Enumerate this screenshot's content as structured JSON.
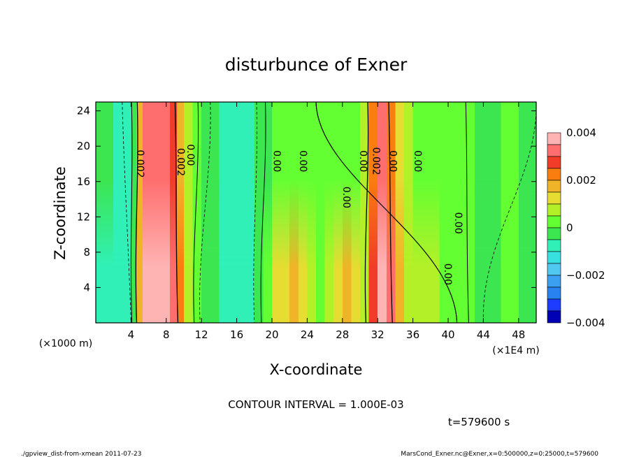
{
  "chart_data": {
    "type": "heatmap",
    "title": "disturbunce of Exner",
    "xlabel": "X-coordinate",
    "ylabel": "Z-coordinate",
    "x_unit_label": "(×1E4 m)",
    "y_unit_label": "(×1000 m)",
    "xlim": [
      0,
      50
    ],
    "ylim": [
      0,
      25
    ],
    "x_ticks": [
      4,
      8,
      12,
      16,
      20,
      24,
      28,
      32,
      36,
      40,
      44,
      48
    ],
    "y_ticks": [
      4,
      8,
      12,
      16,
      20,
      24
    ],
    "colorbar": {
      "min": -0.004,
      "max": 0.004,
      "tick_labels": [
        "0.004",
        "0.002",
        "0",
        "−0.002",
        "−0.004"
      ],
      "tick_values": [
        0.004,
        0.002,
        0,
        -0.002,
        -0.004
      ]
    },
    "contour_labels": [
      {
        "text": "0.002",
        "x": 5.0,
        "z": 18.0
      },
      {
        "text": "0.002",
        "x": 9.6,
        "z": 18.2
      },
      {
        "text": "0.00",
        "x": 10.7,
        "z": 19.0
      },
      {
        "text": "0.00",
        "x": 20.5,
        "z": 18.3
      },
      {
        "text": "0.00",
        "x": 23.5,
        "z": 18.3
      },
      {
        "text": "0.00",
        "x": 28.4,
        "z": 14.2
      },
      {
        "text": "0.00",
        "x": 30.3,
        "z": 18.3
      },
      {
        "text": "0.002",
        "x": 31.8,
        "z": 18.3
      },
      {
        "text": "0.00",
        "x": 33.7,
        "z": 18.3
      },
      {
        "text": "0.00",
        "x": 36.5,
        "z": 18.3
      },
      {
        "text": "0.00",
        "x": 41.1,
        "z": 11.3
      },
      {
        "text": "0.00",
        "x": 39.9,
        "z": 5.5
      }
    ],
    "column_profile": {
      "x": [
        0,
        2,
        4,
        4.6,
        5.3,
        6,
        6.8,
        7.6,
        8.4,
        9.2,
        10,
        11,
        12,
        14,
        16,
        18,
        19,
        20,
        21,
        22,
        23,
        24,
        25,
        26,
        27,
        28,
        29,
        30,
        31,
        32,
        33,
        34,
        35,
        36,
        37,
        38,
        39,
        40,
        41,
        42,
        43,
        44,
        46,
        48,
        50
      ],
      "value_top": [
        -0.0004,
        -0.0006,
        -0.0002,
        0.0018,
        0.0031,
        0.0033,
        0.0033,
        0.0031,
        0.0026,
        0.0018,
        0.0009,
        0.0003,
        -0.0002,
        -0.0006,
        -0.0008,
        -0.0005,
        -0.0001,
        0.0003,
        0.0004,
        0.0004,
        0.0003,
        0.0002,
        0.0,
        0.0001,
        0.0003,
        0.0004,
        0.0004,
        0.0006,
        0.0022,
        0.003,
        0.0023,
        0.0011,
        0.0006,
        0.0004,
        0.0004,
        0.0002,
        0.0001,
        0.0003,
        0.0002,
        0.0,
        -0.0002,
        -0.0003,
        0.0,
        -0.0002,
        -0.0004
      ],
      "value_bottom": [
        -0.0008,
        -0.001,
        -0.0004,
        0.0019,
        0.0035,
        0.0036,
        0.0036,
        0.0035,
        0.0032,
        0.0022,
        0.0009,
        0.0001,
        -0.0005,
        -0.0008,
        -0.0009,
        -0.0004,
        0.0001,
        0.0011,
        0.0014,
        0.0016,
        0.0013,
        0.0009,
        0.0004,
        0.0005,
        0.0011,
        0.0015,
        0.001,
        0.0008,
        0.0026,
        0.0037,
        0.003,
        0.0015,
        0.0009,
        0.0008,
        0.0006,
        0.0005,
        0.0002,
        0.0002,
        0.0,
        0.0001,
        -0.0002,
        -0.0004,
        0.0,
        -0.0004,
        -0.0007
      ]
    }
  },
  "footer": {
    "contour_interval": "CONTOUR INTERVAL = 1.000E-03",
    "time": "t=579600 s",
    "script_name": "./gpview_dist-from-xmean  2011-07-23",
    "source": "MarsCond_Exner.nc@Exner,x=0:500000,z=0:25000,t=579600"
  }
}
